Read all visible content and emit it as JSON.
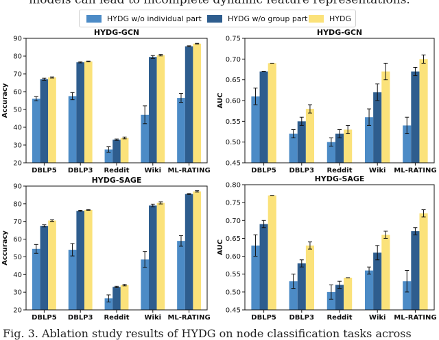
{
  "top_text": "models can lead to incomplete dynamic feature representations.",
  "caption": "Fig. 3.  Ablation study results of HYDG on node classification tasks across",
  "colors": {
    "c1": "#4c8bc6",
    "c2": "#2e5d8e",
    "c3": "#fbe27a",
    "err": "#111111",
    "axis": "#111111"
  },
  "legend": [
    {
      "label": "HYDG w/o individual part",
      "color": "#4c8bc6"
    },
    {
      "label": "HYDG w/o group part",
      "color": "#2e5d8e"
    },
    {
      "label": "HYDG",
      "color": "#fbe27a"
    }
  ],
  "chart_data": [
    {
      "type": "bar",
      "title": "HYDG-GCN",
      "ylabel": "Accuracy",
      "categories": [
        "DBLP5",
        "DBLP3",
        "Reddit",
        "Wiki",
        "ML-RATING"
      ],
      "ylim": [
        20,
        90
      ],
      "yticks": [
        20,
        30,
        40,
        50,
        60,
        70,
        80,
        90
      ],
      "series": [
        {
          "name": "HYDG w/o individual part",
          "values": [
            56.0,
            57.5,
            27.5,
            47.0,
            56.5
          ],
          "errors": [
            1.2,
            2.0,
            1.5,
            5.0,
            2.5
          ]
        },
        {
          "name": "HYDG w/o group part",
          "values": [
            67.0,
            76.5,
            33.0,
            79.5,
            85.5
          ],
          "errors": [
            0.6,
            0.3,
            0.4,
            0.8,
            0.3
          ]
        },
        {
          "name": "HYDG",
          "values": [
            68.0,
            77.0,
            34.0,
            80.5,
            87.0
          ],
          "errors": [
            0.3,
            0.2,
            0.5,
            0.4,
            0.2
          ]
        }
      ]
    },
    {
      "type": "bar",
      "title": "HYDG-GCN",
      "ylabel": "AUC",
      "categories": [
        "DBLP5",
        "DBLP3",
        "Reddit",
        "Wiki",
        "ML-RATING"
      ],
      "ylim": [
        0.45,
        0.75
      ],
      "yticks": [
        "0.45",
        "0.50",
        "0.55",
        "0.60",
        "0.65",
        "0.70",
        "0.75"
      ],
      "series": [
        {
          "name": "HYDG w/o individual part",
          "values": [
            0.61,
            0.52,
            0.5,
            0.56,
            0.54
          ],
          "errors": [
            0.02,
            0.01,
            0.01,
            0.02,
            0.02
          ]
        },
        {
          "name": "HYDG w/o group part",
          "values": [
            0.67,
            0.55,
            0.52,
            0.62,
            0.67
          ],
          "errors": [
            0.0,
            0.01,
            0.01,
            0.02,
            0.01
          ]
        },
        {
          "name": "HYDG",
          "values": [
            0.69,
            0.58,
            0.53,
            0.67,
            0.7
          ],
          "errors": [
            0.0,
            0.01,
            0.01,
            0.02,
            0.01
          ]
        }
      ]
    },
    {
      "type": "bar",
      "title": "HYDG-SAGE",
      "ylabel": "Accuracy",
      "categories": [
        "DBLP5",
        "DBLP3",
        "Reddit",
        "Wiki",
        "ML-RATING"
      ],
      "ylim": [
        20,
        90
      ],
      "yticks": [
        20,
        30,
        40,
        50,
        60,
        70,
        80,
        90
      ],
      "series": [
        {
          "name": "HYDG w/o individual part",
          "values": [
            54.5,
            54.0,
            26.5,
            48.5,
            59.0
          ],
          "errors": [
            2.5,
            3.5,
            2.0,
            4.5,
            3.0
          ]
        },
        {
          "name": "HYDG w/o group part",
          "values": [
            67.5,
            76.0,
            33.0,
            79.0,
            85.5
          ],
          "errors": [
            0.6,
            0.3,
            0.4,
            0.8,
            0.3
          ]
        },
        {
          "name": "HYDG",
          "values": [
            70.5,
            76.5,
            34.0,
            80.5,
            87.0
          ],
          "errors": [
            0.5,
            0.2,
            0.4,
            0.6,
            0.4
          ]
        }
      ]
    },
    {
      "type": "bar",
      "title": "HYDG-SAGE",
      "ylabel": "AUC",
      "categories": [
        "DBLP5",
        "DBLP3",
        "Reddit",
        "Wiki",
        "ML-RATING"
      ],
      "ylim": [
        0.45,
        0.8
      ],
      "yticks": [
        "0.45",
        "0.50",
        "0.55",
        "0.60",
        "0.65",
        "0.70",
        "0.75",
        "0.80"
      ],
      "series": [
        {
          "name": "HYDG w/o individual part",
          "values": [
            0.63,
            0.53,
            0.5,
            0.56,
            0.53
          ],
          "errors": [
            0.03,
            0.02,
            0.02,
            0.01,
            0.03
          ]
        },
        {
          "name": "HYDG w/o group part",
          "values": [
            0.69,
            0.58,
            0.52,
            0.61,
            0.67
          ],
          "errors": [
            0.01,
            0.01,
            0.01,
            0.02,
            0.01
          ]
        },
        {
          "name": "HYDG",
          "values": [
            0.77,
            0.63,
            0.54,
            0.66,
            0.72
          ],
          "errors": [
            0.0,
            0.01,
            0.0,
            0.01,
            0.01
          ]
        }
      ]
    }
  ]
}
